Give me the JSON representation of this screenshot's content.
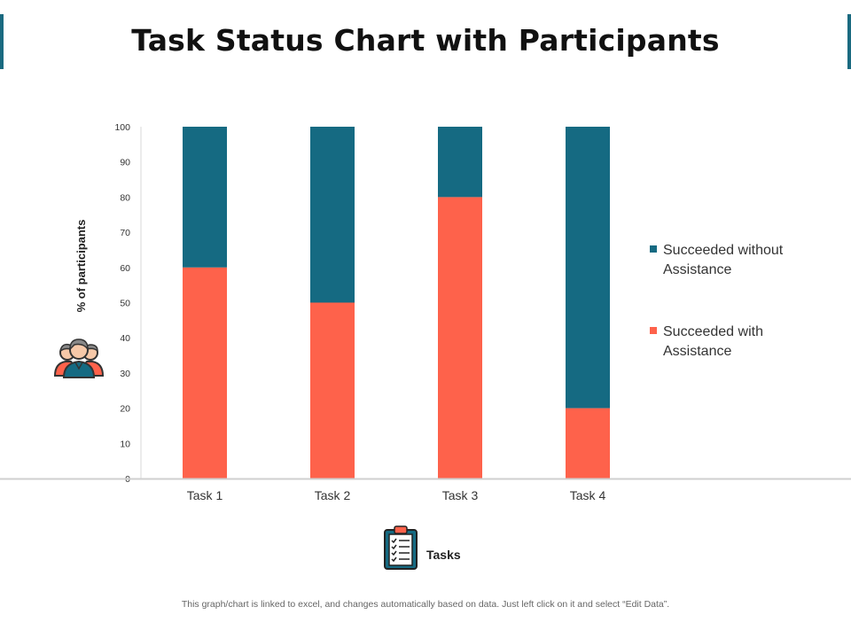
{
  "title": "Task Status Chart with Participants",
  "footnote": "This graph/chart is linked to excel,  and changes automatically based on data. Just left click on it and select “Edit Data”.",
  "colors": {
    "with": "#fe624b",
    "without": "#156a82",
    "accent": "#1a6a80"
  },
  "chart_data": {
    "type": "bar",
    "stacked": true,
    "title": "Task Status Chart with Participants",
    "xlabel": "Tasks",
    "ylabel": "% of participants",
    "ylim": [
      0,
      100
    ],
    "yticks": [
      0,
      10,
      20,
      30,
      40,
      50,
      60,
      70,
      80,
      90,
      100
    ],
    "categories": [
      "Task 1",
      "Task 2",
      "Task 3",
      "Task 4"
    ],
    "series": [
      {
        "name": "Succeeded with Assistance",
        "color": "#fe624b",
        "values": [
          60,
          50,
          80,
          20
        ]
      },
      {
        "name": "Succeeded without Assistance",
        "color": "#156a82",
        "values": [
          40,
          50,
          20,
          80
        ]
      }
    ],
    "legend": {
      "position": "right",
      "entries": [
        {
          "label_lines": [
            "Succeeded without",
            "Assistance"
          ],
          "color": "#156a82"
        },
        {
          "label_lines": [
            "Succeeded with",
            "Assistance"
          ],
          "color": "#fe624b"
        }
      ]
    }
  },
  "icons": {
    "ylabel_icon": "people-group-icon",
    "xlabel_icon": "clipboard-checklist-icon"
  }
}
